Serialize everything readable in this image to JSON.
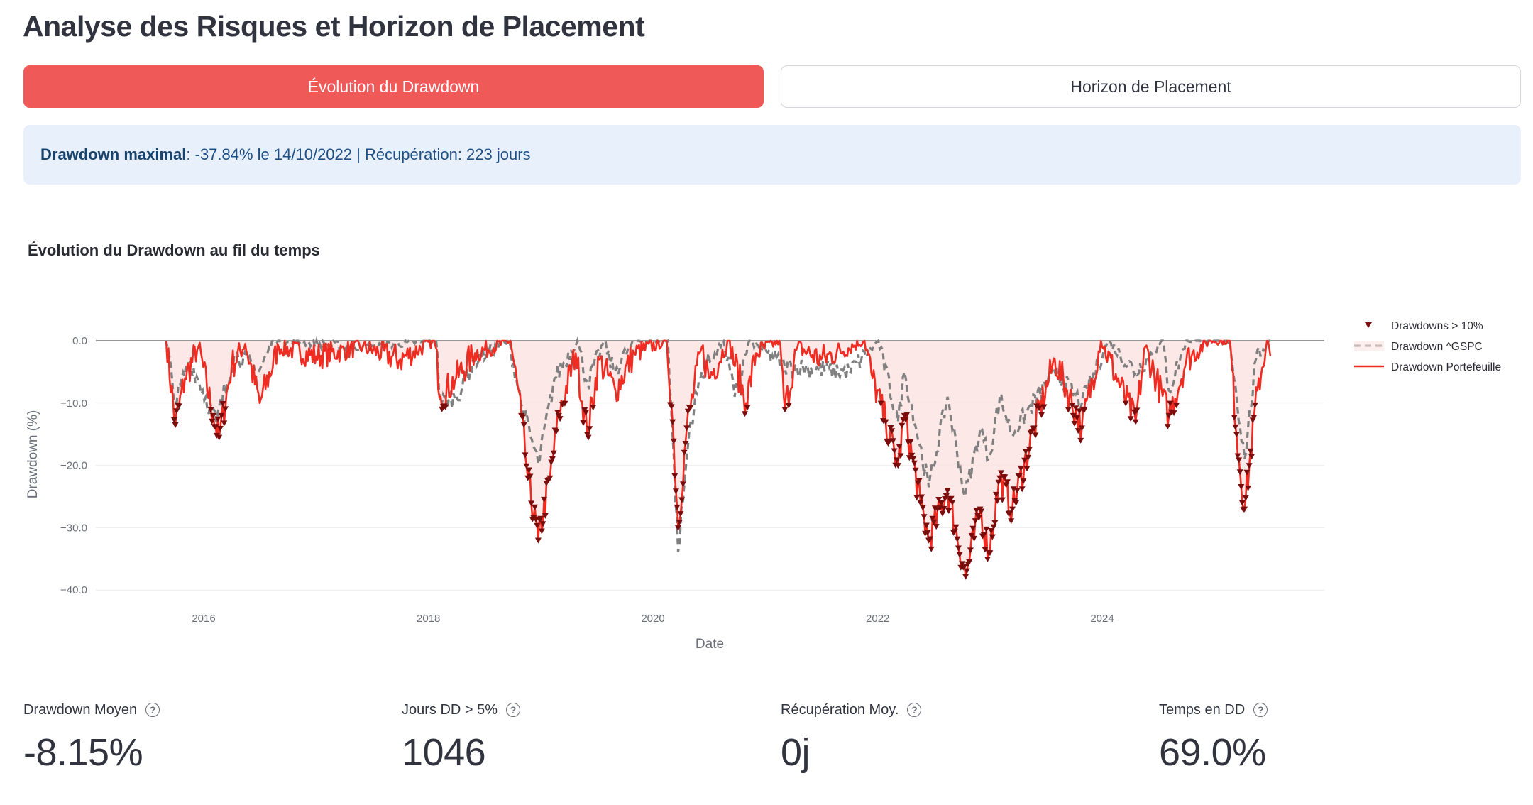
{
  "page": {
    "title": "Analyse des Risques et Horizon de Placement"
  },
  "tabs": [
    {
      "label": "Évolution du Drawdown",
      "active": true
    },
    {
      "label": "Horizon de Placement",
      "active": false
    }
  ],
  "info": {
    "label": "Drawdown maximal",
    "text": ": -37.84% le 14/10/2022 | Récupération: 223 jours"
  },
  "chart_title": "Évolution du Drawdown au fil du temps",
  "chart_data": {
    "type": "line",
    "xlabel": "Date",
    "ylabel": "Drawdown (%)",
    "x_ticks": [
      "2016",
      "2018",
      "2020",
      "2022",
      "2024"
    ],
    "y_ticks": [
      "0.0",
      "−10.0",
      "−20.0",
      "−30.0",
      "−40.0"
    ],
    "ylim": [
      -41,
      0
    ],
    "xlim": [
      "2015-01-01",
      "2025-12-31"
    ],
    "legend_position": "right",
    "threshold_pct": -10,
    "colors": {
      "portfolio": "#ee2c22",
      "benchmark": "#808080",
      "fill": "#fce4e3",
      "marker": "#7b0c0c"
    },
    "series": [
      {
        "name": "Drawdown Portefeuille",
        "style": "solid",
        "points": [
          [
            "2015-09-01",
            0
          ],
          [
            "2015-10-01",
            -13.5
          ],
          [
            "2015-11-01",
            -6
          ],
          [
            "2015-12-15",
            -1
          ],
          [
            "2016-02-01",
            -12
          ],
          [
            "2016-02-20",
            -15.5
          ],
          [
            "2016-04-01",
            -4
          ],
          [
            "2016-05-15",
            -0.5
          ],
          [
            "2016-07-01",
            -10
          ],
          [
            "2016-09-01",
            -1
          ],
          [
            "2017-01-01",
            -2.5
          ],
          [
            "2017-06-01",
            -1
          ],
          [
            "2017-10-01",
            -3
          ],
          [
            "2018-01-20",
            0
          ],
          [
            "2018-02-10",
            -9
          ],
          [
            "2018-04-01",
            -6
          ],
          [
            "2018-06-01",
            -2
          ],
          [
            "2018-09-25",
            0
          ],
          [
            "2018-10-30",
            -12
          ],
          [
            "2018-11-20",
            -22
          ],
          [
            "2018-12-24",
            -32
          ],
          [
            "2019-01-31",
            -22
          ],
          [
            "2019-03-01",
            -12
          ],
          [
            "2019-04-25",
            -2
          ],
          [
            "2019-06-01",
            -15
          ],
          [
            "2019-07-10",
            -3
          ],
          [
            "2019-09-01",
            -8
          ],
          [
            "2019-11-01",
            -2
          ],
          [
            "2020-02-15",
            0
          ],
          [
            "2020-03-05",
            -13
          ],
          [
            "2020-03-23",
            -30
          ],
          [
            "2020-04-20",
            -14
          ],
          [
            "2020-06-08",
            -1
          ],
          [
            "2020-07-01",
            -6
          ],
          [
            "2020-09-03",
            0
          ],
          [
            "2020-10-30",
            -10
          ],
          [
            "2020-12-01",
            -2
          ],
          [
            "2021-02-15",
            0
          ],
          [
            "2021-03-05",
            -11
          ],
          [
            "2021-04-15",
            -1
          ],
          [
            "2021-07-01",
            -3
          ],
          [
            "2021-11-19",
            0
          ],
          [
            "2021-12-15",
            -6
          ],
          [
            "2022-01-27",
            -13
          ],
          [
            "2022-03-08",
            -20
          ],
          [
            "2022-03-29",
            -12
          ],
          [
            "2022-05-20",
            -26
          ],
          [
            "2022-06-16",
            -32
          ],
          [
            "2022-08-16",
            -24
          ],
          [
            "2022-10-14",
            -37.84
          ],
          [
            "2022-11-30",
            -27
          ],
          [
            "2022-12-28",
            -34
          ],
          [
            "2023-02-02",
            -22
          ],
          [
            "2023-03-15",
            -27
          ],
          [
            "2023-05-25",
            -14
          ],
          [
            "2023-07-31",
            -3
          ],
          [
            "2023-10-27",
            -14
          ],
          [
            "2023-12-28",
            0
          ],
          [
            "2024-04-19",
            -13
          ],
          [
            "2024-05-20",
            -1
          ],
          [
            "2024-08-05",
            -12
          ],
          [
            "2024-10-01",
            -3
          ],
          [
            "2024-12-15",
            0
          ],
          [
            "2025-02-19",
            0
          ],
          [
            "2025-03-13",
            -15
          ],
          [
            "2025-04-08",
            -27
          ],
          [
            "2025-05-20",
            -8
          ],
          [
            "2025-06-20",
            0
          ],
          [
            "2025-07-01",
            -2.5
          ]
        ]
      },
      {
        "name": "Drawdown ^GSPC",
        "style": "dash",
        "points": [
          [
            "2015-09-01",
            0
          ],
          [
            "2015-10-01",
            -10
          ],
          [
            "2015-11-15",
            -3
          ],
          [
            "2016-02-11",
            -13
          ],
          [
            "2016-04-10",
            -2
          ],
          [
            "2016-06-27",
            -5
          ],
          [
            "2016-08-15",
            0
          ],
          [
            "2017-06-01",
            -1
          ],
          [
            "2018-01-26",
            0
          ],
          [
            "2018-02-08",
            -10
          ],
          [
            "2018-04-02",
            -9
          ],
          [
            "2018-06-01",
            -3
          ],
          [
            "2018-09-20",
            0
          ],
          [
            "2018-10-29",
            -10
          ],
          [
            "2018-12-24",
            -19.8
          ],
          [
            "2019-02-15",
            -6
          ],
          [
            "2019-04-30",
            0
          ],
          [
            "2019-06-03",
            -7
          ],
          [
            "2019-07-26",
            0
          ],
          [
            "2019-08-26",
            -5
          ],
          [
            "2019-11-01",
            0
          ],
          [
            "2020-02-19",
            0
          ],
          [
            "2020-03-23",
            -33.9
          ],
          [
            "2020-04-29",
            -14
          ],
          [
            "2020-06-08",
            -5
          ],
          [
            "2020-07-20",
            -2
          ],
          [
            "2020-08-18",
            0
          ],
          [
            "2020-09-23",
            -9
          ],
          [
            "2020-11-10",
            0
          ],
          [
            "2021-03-04",
            -4
          ],
          [
            "2021-09-30",
            -5
          ],
          [
            "2022-01-03",
            0
          ],
          [
            "2022-03-08",
            -13
          ],
          [
            "2022-03-29",
            -5
          ],
          [
            "2022-06-16",
            -23.5
          ],
          [
            "2022-08-16",
            -9
          ],
          [
            "2022-10-12",
            -25
          ],
          [
            "2022-12-01",
            -14
          ],
          [
            "2022-12-28",
            -19
          ],
          [
            "2023-02-02",
            -9
          ],
          [
            "2023-03-13",
            -15
          ],
          [
            "2023-07-31",
            -5
          ],
          [
            "2023-10-27",
            -10
          ],
          [
            "2024-01-19",
            0
          ],
          [
            "2024-04-19",
            -5
          ],
          [
            "2024-07-16",
            0
          ],
          [
            "2024-08-05",
            -8
          ],
          [
            "2024-09-30",
            0
          ],
          [
            "2025-02-19",
            0
          ],
          [
            "2025-04-08",
            -19
          ],
          [
            "2025-05-15",
            -3
          ],
          [
            "2025-06-27",
            0
          ],
          [
            "2025-07-01",
            0
          ]
        ]
      },
      {
        "name": "Drawdowns > 10%",
        "style": "marker"
      }
    ]
  },
  "metrics": [
    {
      "label": "Drawdown Moyen",
      "value": "-8.15%"
    },
    {
      "label": "Jours DD > 5%",
      "value": "1046"
    },
    {
      "label": "Récupération Moy.",
      "value": "0j"
    },
    {
      "label": "Temps en DD",
      "value": "69.0%"
    }
  ],
  "help_glyph": "?"
}
